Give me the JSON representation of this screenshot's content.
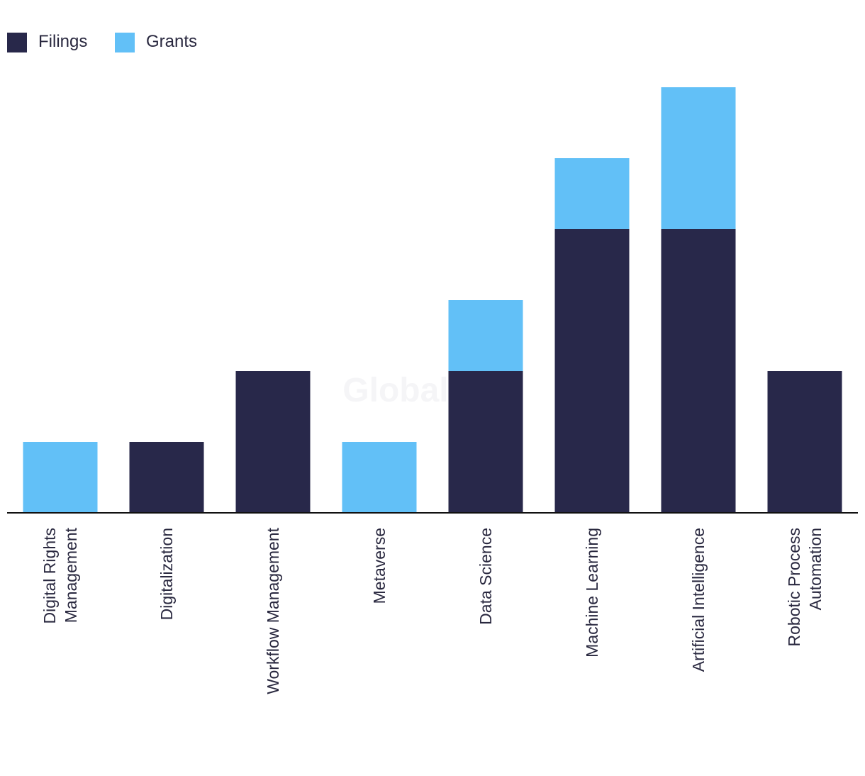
{
  "chart_data": {
    "type": "bar",
    "stacked": true,
    "title": "",
    "xlabel": "",
    "ylabel": "",
    "categories": [
      [
        "Digital Rights",
        "Management"
      ],
      [
        "Digitalization"
      ],
      [
        "Workflow Management"
      ],
      [
        "Metaverse"
      ],
      [
        "Data Science"
      ],
      [
        "Machine Learning"
      ],
      [
        "Artificial Intelligence"
      ],
      [
        "Robotic Process",
        "Automation"
      ]
    ],
    "series": [
      {
        "name": "Filings",
        "color": "#28284a",
        "values": [
          0,
          1,
          2,
          0,
          2,
          4,
          4,
          2
        ]
      },
      {
        "name": "Grants",
        "color": "#62c0f7",
        "values": [
          1,
          0,
          0,
          1,
          1,
          1,
          2,
          0
        ]
      }
    ],
    "ylim": [
      0,
      6
    ],
    "grid": false,
    "legend_position": "top-left",
    "watermark": "GlobalData"
  }
}
